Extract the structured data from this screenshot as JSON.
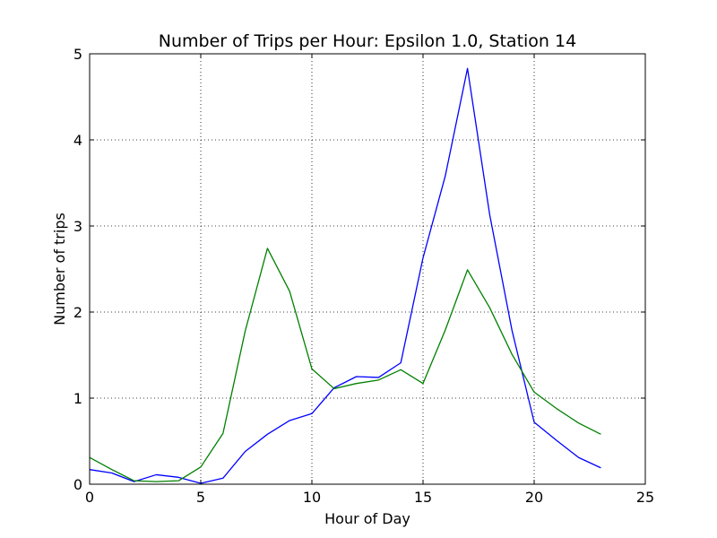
{
  "chart_data": {
    "type": "line",
    "title": "Number of Trips per Hour: Epsilon 1.0, Station 14",
    "xlabel": "Hour of Day",
    "ylabel": "Number of trips",
    "xlim": [
      0,
      25
    ],
    "ylim": [
      0,
      5
    ],
    "xticks": [
      0,
      5,
      10,
      15,
      20,
      25
    ],
    "yticks": [
      0,
      1,
      2,
      3,
      4,
      5
    ],
    "grid": true,
    "x": [
      0,
      1,
      2,
      3,
      4,
      5,
      6,
      7,
      8,
      9,
      10,
      11,
      12,
      13,
      14,
      15,
      16,
      17,
      18,
      19,
      20,
      21,
      22,
      23
    ],
    "series": [
      {
        "color": "#0000ff",
        "values": [
          0.17,
          0.13,
          0.03,
          0.11,
          0.08,
          0.01,
          0.07,
          0.38,
          0.58,
          0.74,
          0.82,
          1.12,
          1.25,
          1.24,
          1.41,
          2.63,
          3.58,
          4.83,
          3.13,
          1.79,
          0.72,
          0.51,
          0.31,
          0.19
        ]
      },
      {
        "color": "#008000",
        "values": [
          0.31,
          0.17,
          0.04,
          0.03,
          0.04,
          0.2,
          0.59,
          1.78,
          2.74,
          2.24,
          1.34,
          1.11,
          1.17,
          1.21,
          1.33,
          1.17,
          1.79,
          2.49,
          2.05,
          1.51,
          1.07,
          0.88,
          0.71,
          0.58
        ]
      }
    ]
  }
}
